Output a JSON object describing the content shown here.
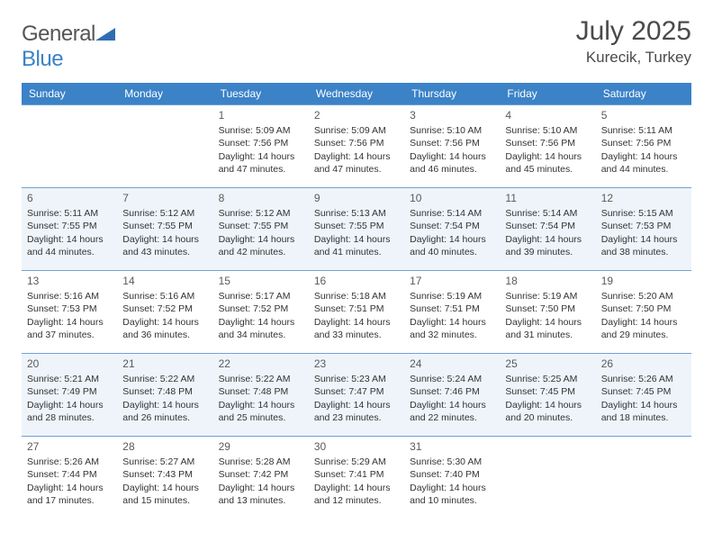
{
  "brand": {
    "name_part1": "General",
    "name_part2": "Blue",
    "logo_color": "#2f6db3"
  },
  "header": {
    "month_title": "July 2025",
    "location": "Kurecik, Turkey"
  },
  "colors": {
    "header_bg": "#3b82c7",
    "header_text": "#ffffff",
    "row_border": "#6fa3d2",
    "alt_row_bg": "#eef4fa",
    "text": "#333333",
    "title_text": "#4a4a4a"
  },
  "weekdays": [
    "Sunday",
    "Monday",
    "Tuesday",
    "Wednesday",
    "Thursday",
    "Friday",
    "Saturday"
  ],
  "weeks": [
    {
      "alt": false,
      "days": [
        null,
        null,
        {
          "n": "1",
          "sr": "5:09 AM",
          "ss": "7:56 PM",
          "dl": "14 hours and 47 minutes."
        },
        {
          "n": "2",
          "sr": "5:09 AM",
          "ss": "7:56 PM",
          "dl": "14 hours and 47 minutes."
        },
        {
          "n": "3",
          "sr": "5:10 AM",
          "ss": "7:56 PM",
          "dl": "14 hours and 46 minutes."
        },
        {
          "n": "4",
          "sr": "5:10 AM",
          "ss": "7:56 PM",
          "dl": "14 hours and 45 minutes."
        },
        {
          "n": "5",
          "sr": "5:11 AM",
          "ss": "7:56 PM",
          "dl": "14 hours and 44 minutes."
        }
      ]
    },
    {
      "alt": true,
      "days": [
        {
          "n": "6",
          "sr": "5:11 AM",
          "ss": "7:55 PM",
          "dl": "14 hours and 44 minutes."
        },
        {
          "n": "7",
          "sr": "5:12 AM",
          "ss": "7:55 PM",
          "dl": "14 hours and 43 minutes."
        },
        {
          "n": "8",
          "sr": "5:12 AM",
          "ss": "7:55 PM",
          "dl": "14 hours and 42 minutes."
        },
        {
          "n": "9",
          "sr": "5:13 AM",
          "ss": "7:55 PM",
          "dl": "14 hours and 41 minutes."
        },
        {
          "n": "10",
          "sr": "5:14 AM",
          "ss": "7:54 PM",
          "dl": "14 hours and 40 minutes."
        },
        {
          "n": "11",
          "sr": "5:14 AM",
          "ss": "7:54 PM",
          "dl": "14 hours and 39 minutes."
        },
        {
          "n": "12",
          "sr": "5:15 AM",
          "ss": "7:53 PM",
          "dl": "14 hours and 38 minutes."
        }
      ]
    },
    {
      "alt": false,
      "days": [
        {
          "n": "13",
          "sr": "5:16 AM",
          "ss": "7:53 PM",
          "dl": "14 hours and 37 minutes."
        },
        {
          "n": "14",
          "sr": "5:16 AM",
          "ss": "7:52 PM",
          "dl": "14 hours and 36 minutes."
        },
        {
          "n": "15",
          "sr": "5:17 AM",
          "ss": "7:52 PM",
          "dl": "14 hours and 34 minutes."
        },
        {
          "n": "16",
          "sr": "5:18 AM",
          "ss": "7:51 PM",
          "dl": "14 hours and 33 minutes."
        },
        {
          "n": "17",
          "sr": "5:19 AM",
          "ss": "7:51 PM",
          "dl": "14 hours and 32 minutes."
        },
        {
          "n": "18",
          "sr": "5:19 AM",
          "ss": "7:50 PM",
          "dl": "14 hours and 31 minutes."
        },
        {
          "n": "19",
          "sr": "5:20 AM",
          "ss": "7:50 PM",
          "dl": "14 hours and 29 minutes."
        }
      ]
    },
    {
      "alt": true,
      "days": [
        {
          "n": "20",
          "sr": "5:21 AM",
          "ss": "7:49 PM",
          "dl": "14 hours and 28 minutes."
        },
        {
          "n": "21",
          "sr": "5:22 AM",
          "ss": "7:48 PM",
          "dl": "14 hours and 26 minutes."
        },
        {
          "n": "22",
          "sr": "5:22 AM",
          "ss": "7:48 PM",
          "dl": "14 hours and 25 minutes."
        },
        {
          "n": "23",
          "sr": "5:23 AM",
          "ss": "7:47 PM",
          "dl": "14 hours and 23 minutes."
        },
        {
          "n": "24",
          "sr": "5:24 AM",
          "ss": "7:46 PM",
          "dl": "14 hours and 22 minutes."
        },
        {
          "n": "25",
          "sr": "5:25 AM",
          "ss": "7:45 PM",
          "dl": "14 hours and 20 minutes."
        },
        {
          "n": "26",
          "sr": "5:26 AM",
          "ss": "7:45 PM",
          "dl": "14 hours and 18 minutes."
        }
      ]
    },
    {
      "alt": false,
      "days": [
        {
          "n": "27",
          "sr": "5:26 AM",
          "ss": "7:44 PM",
          "dl": "14 hours and 17 minutes."
        },
        {
          "n": "28",
          "sr": "5:27 AM",
          "ss": "7:43 PM",
          "dl": "14 hours and 15 minutes."
        },
        {
          "n": "29",
          "sr": "5:28 AM",
          "ss": "7:42 PM",
          "dl": "14 hours and 13 minutes."
        },
        {
          "n": "30",
          "sr": "5:29 AM",
          "ss": "7:41 PM",
          "dl": "14 hours and 12 minutes."
        },
        {
          "n": "31",
          "sr": "5:30 AM",
          "ss": "7:40 PM",
          "dl": "14 hours and 10 minutes."
        },
        null,
        null
      ]
    }
  ],
  "labels": {
    "sunrise": "Sunrise:",
    "sunset": "Sunset:",
    "daylight": "Daylight:"
  }
}
